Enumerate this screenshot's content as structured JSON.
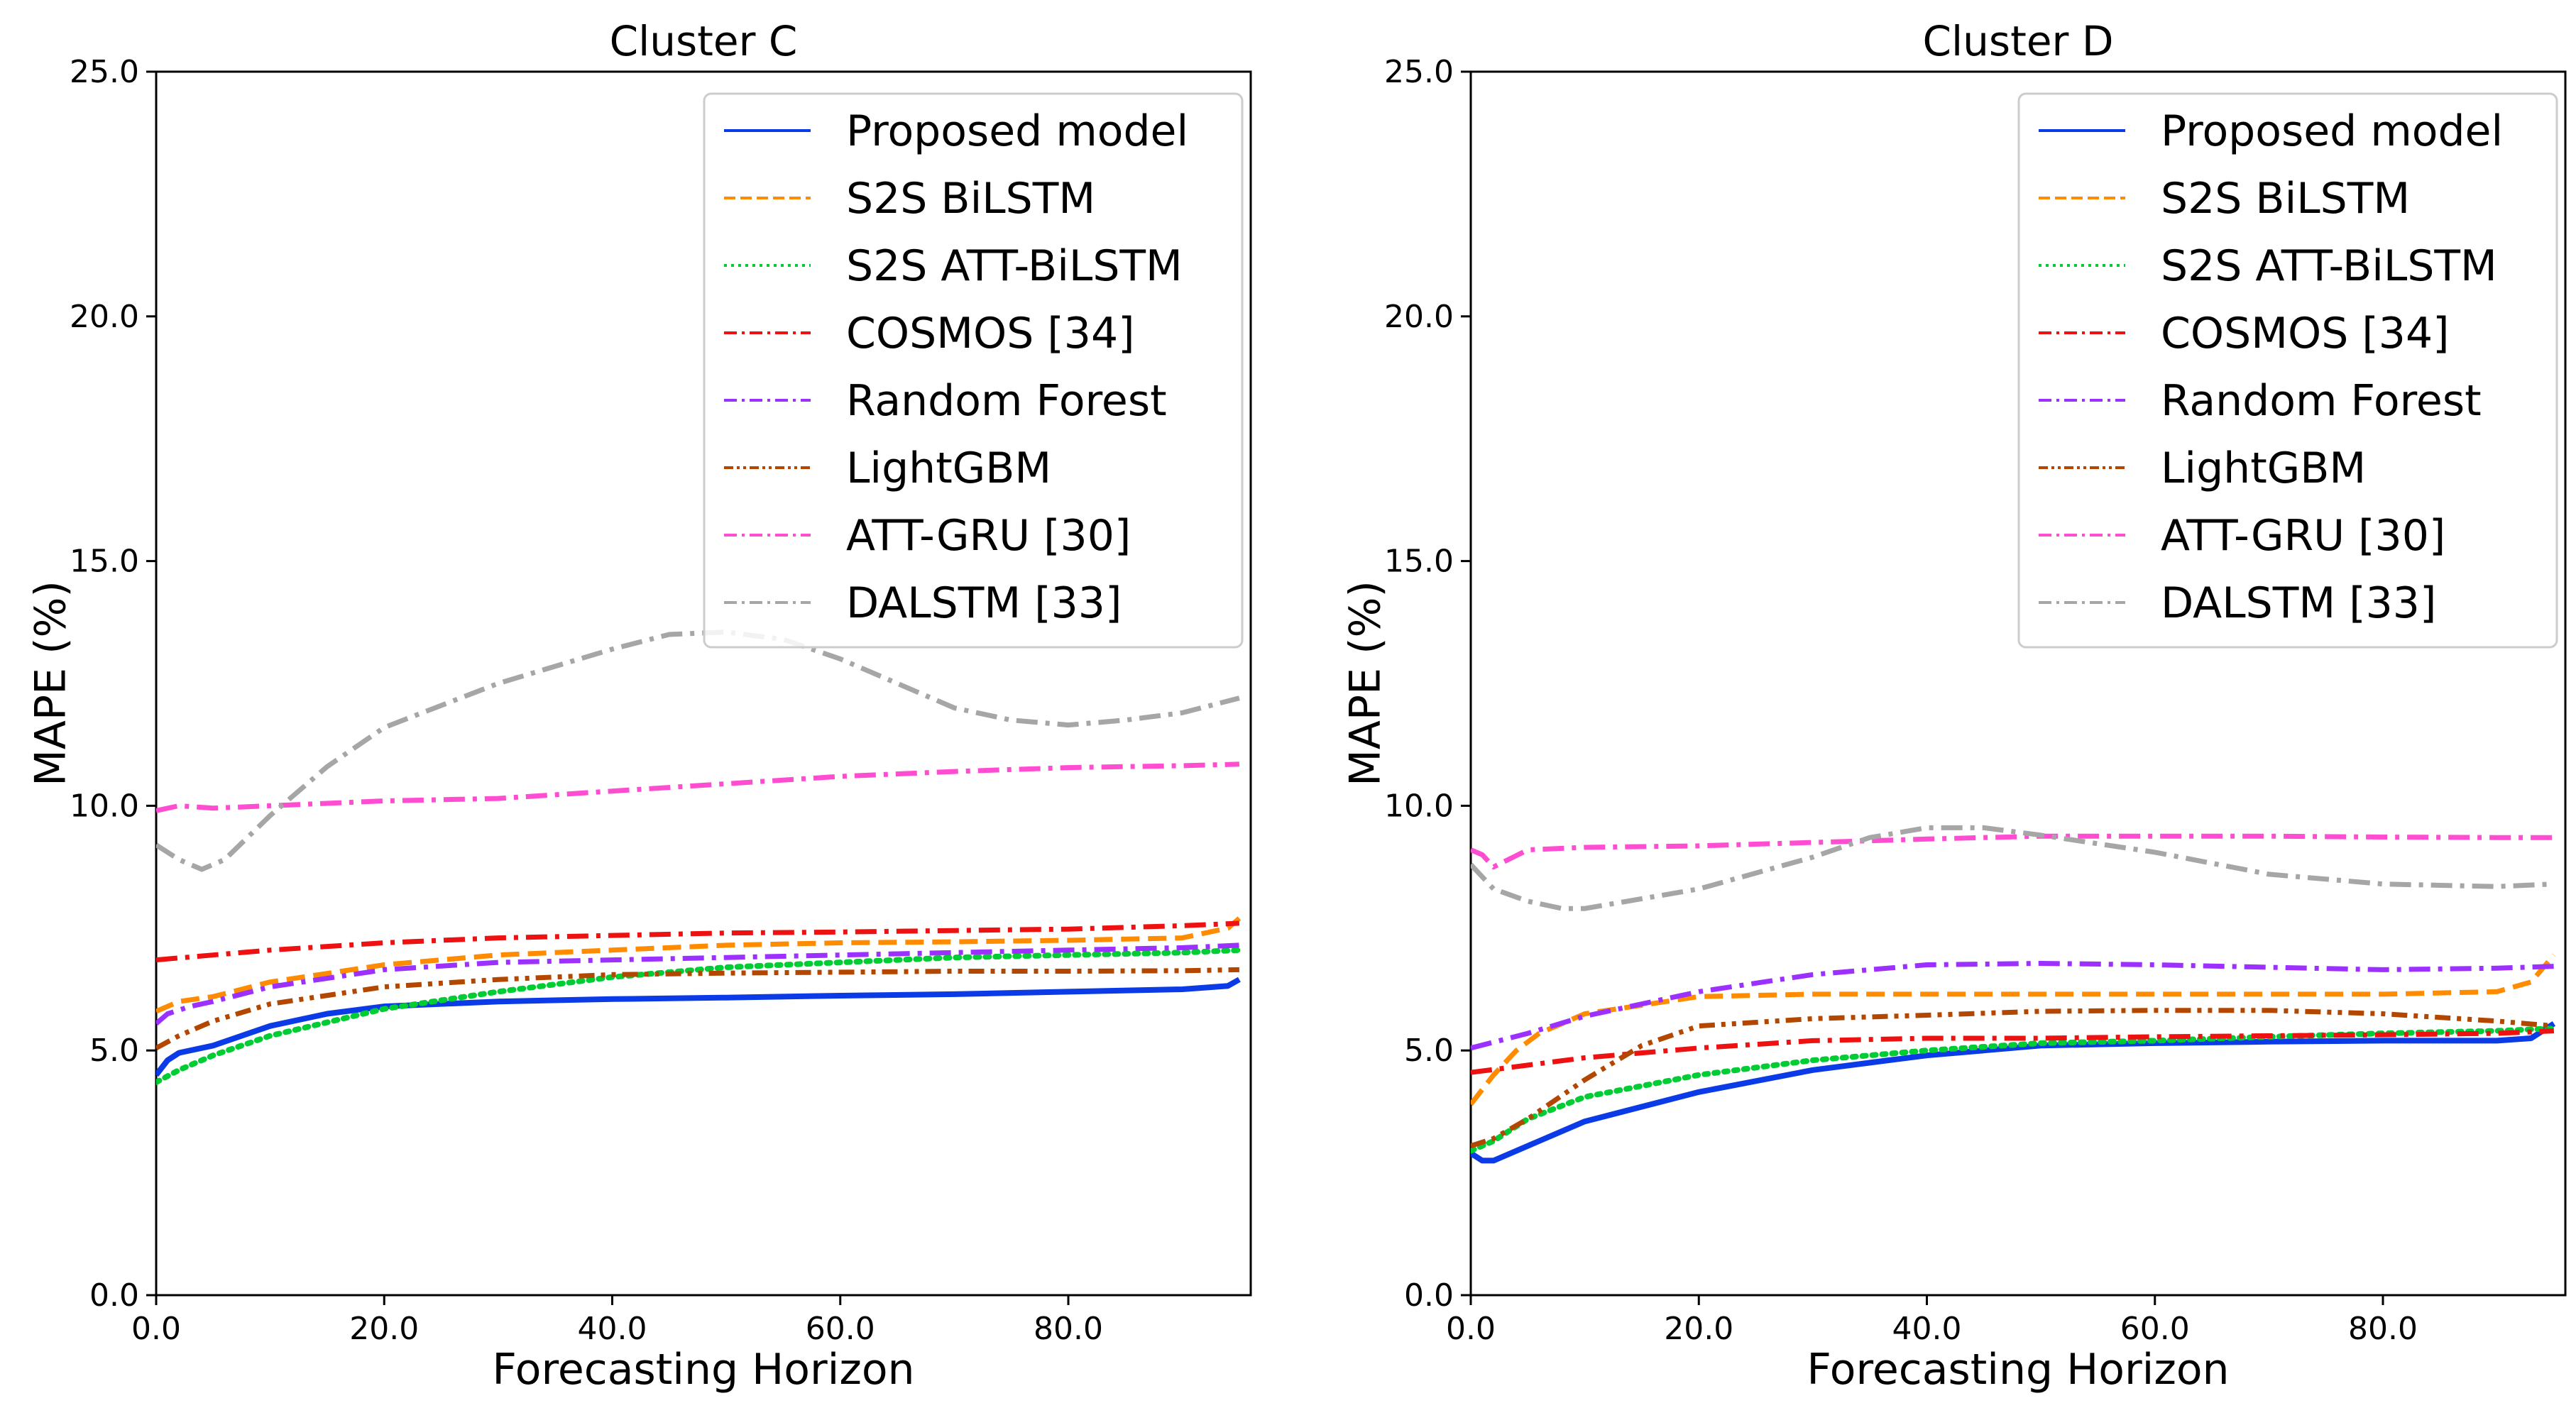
{
  "chart_data": [
    {
      "type": "line",
      "title": "Cluster C",
      "xlabel": "Forecasting Horizon",
      "ylabel": "MAPE (%)",
      "xlim": [
        0,
        96
      ],
      "ylim": [
        0,
        25
      ],
      "xticks": [
        "0.0",
        "20.0",
        "40.0",
        "60.0",
        "80.0"
      ],
      "yticks": [
        "0.0",
        "5.0",
        "10.0",
        "15.0",
        "20.0",
        "25.0"
      ],
      "grid": false,
      "legend_position": "upper-right",
      "series": [
        {
          "name": "Proposed model",
          "color": "#0a3be6",
          "dash": "solid",
          "x": [
            0,
            1,
            2,
            5,
            10,
            15,
            20,
            30,
            40,
            50,
            60,
            70,
            80,
            90,
            94,
            95
          ],
          "values": [
            4.5,
            4.8,
            4.95,
            5.1,
            5.5,
            5.75,
            5.9,
            6.0,
            6.05,
            6.08,
            6.12,
            6.15,
            6.2,
            6.25,
            6.32,
            6.45
          ]
        },
        {
          "name": "S2S BiLSTM",
          "color": "#ff8c00",
          "dash": "dashed",
          "x": [
            0,
            2,
            5,
            10,
            20,
            30,
            40,
            50,
            60,
            70,
            80,
            90,
            94,
            95
          ],
          "values": [
            5.8,
            6.0,
            6.1,
            6.4,
            6.75,
            6.95,
            7.05,
            7.15,
            7.2,
            7.22,
            7.25,
            7.3,
            7.5,
            7.7
          ]
        },
        {
          "name": "S2S ATT-BiLSTM",
          "color": "#00cc33",
          "dash": "dotted",
          "x": [
            0,
            2,
            5,
            10,
            20,
            30,
            40,
            50,
            60,
            70,
            80,
            90,
            95
          ],
          "values": [
            4.35,
            4.6,
            4.9,
            5.3,
            5.85,
            6.2,
            6.5,
            6.7,
            6.8,
            6.9,
            6.95,
            7.0,
            7.05
          ]
        },
        {
          "name": "COSMOS [34]",
          "color": "#ee1111",
          "dash": "dashdot",
          "x": [
            0,
            5,
            10,
            20,
            30,
            40,
            50,
            60,
            70,
            80,
            90,
            95
          ],
          "values": [
            6.85,
            6.95,
            7.05,
            7.2,
            7.3,
            7.35,
            7.4,
            7.42,
            7.45,
            7.48,
            7.55,
            7.6
          ]
        },
        {
          "name": "Random Forest",
          "color": "#9b30ff",
          "dash": "dashdot",
          "x": [
            0,
            1,
            3,
            5,
            10,
            20,
            30,
            40,
            50,
            60,
            70,
            80,
            90,
            95
          ],
          "values": [
            5.55,
            5.75,
            5.9,
            6.0,
            6.3,
            6.65,
            6.8,
            6.85,
            6.9,
            6.95,
            7.0,
            7.05,
            7.1,
            7.15
          ]
        },
        {
          "name": "LightGBM",
          "color": "#b34700",
          "dash": "dashdotdot",
          "x": [
            0,
            2,
            5,
            10,
            20,
            30,
            40,
            50,
            60,
            70,
            80,
            90,
            95
          ],
          "values": [
            5.05,
            5.3,
            5.6,
            5.95,
            6.3,
            6.45,
            6.55,
            6.58,
            6.6,
            6.62,
            6.62,
            6.63,
            6.65
          ]
        },
        {
          "name": "ATT-GRU [30]",
          "color": "#ff4dd2",
          "dash": "dashdot",
          "x": [
            0,
            2,
            5,
            10,
            20,
            30,
            40,
            50,
            60,
            70,
            80,
            90,
            95
          ],
          "values": [
            9.9,
            10.0,
            9.95,
            10.0,
            10.1,
            10.15,
            10.3,
            10.45,
            10.6,
            10.7,
            10.78,
            10.82,
            10.85
          ]
        },
        {
          "name": "DALSTM [33]",
          "color": "#a6a6a6",
          "dash": "dashdot",
          "x": [
            0,
            2,
            4,
            6,
            10,
            15,
            20,
            30,
            40,
            45,
            50,
            55,
            60,
            70,
            75,
            80,
            85,
            90,
            95
          ],
          "values": [
            9.2,
            8.9,
            8.7,
            8.9,
            9.8,
            10.8,
            11.6,
            12.5,
            13.2,
            13.5,
            13.55,
            13.4,
            13.0,
            12.0,
            11.75,
            11.65,
            11.75,
            11.9,
            12.2
          ]
        }
      ]
    },
    {
      "type": "line",
      "title": "Cluster D",
      "xlabel": "Forecasting Horizon",
      "ylabel": "MAPE (%)",
      "xlim": [
        0,
        96
      ],
      "ylim": [
        0,
        25
      ],
      "xticks": [
        "0.0",
        "20.0",
        "40.0",
        "60.0",
        "80.0"
      ],
      "yticks": [
        "0.0",
        "5.0",
        "10.0",
        "15.0",
        "20.0",
        "25.0"
      ],
      "grid": false,
      "legend_position": "upper-right",
      "series": [
        {
          "name": "Proposed model",
          "color": "#0a3be6",
          "dash": "solid",
          "x": [
            0,
            1,
            2,
            5,
            10,
            20,
            30,
            40,
            50,
            60,
            70,
            80,
            90,
            93,
            95
          ],
          "values": [
            2.9,
            2.75,
            2.75,
            3.05,
            3.55,
            4.15,
            4.6,
            4.9,
            5.1,
            5.15,
            5.18,
            5.2,
            5.2,
            5.25,
            5.55
          ]
        },
        {
          "name": "S2S BiLSTM",
          "color": "#ff8c00",
          "dash": "dashed",
          "x": [
            0,
            2,
            4,
            6,
            10,
            20,
            30,
            40,
            50,
            60,
            70,
            80,
            90,
            93,
            95
          ],
          "values": [
            3.9,
            4.5,
            5.0,
            5.35,
            5.75,
            6.1,
            6.15,
            6.15,
            6.15,
            6.15,
            6.15,
            6.15,
            6.2,
            6.4,
            6.95
          ]
        },
        {
          "name": "S2S ATT-BiLSTM",
          "color": "#00cc33",
          "dash": "dotted",
          "x": [
            0,
            2,
            5,
            10,
            20,
            30,
            40,
            50,
            60,
            70,
            80,
            90,
            95
          ],
          "values": [
            2.95,
            3.15,
            3.6,
            4.05,
            4.5,
            4.8,
            5.0,
            5.15,
            5.2,
            5.28,
            5.35,
            5.4,
            5.45
          ]
        },
        {
          "name": "COSMOS [34]",
          "color": "#ee1111",
          "dash": "dashdot",
          "x": [
            0,
            5,
            10,
            20,
            30,
            40,
            50,
            60,
            70,
            80,
            90,
            95
          ],
          "values": [
            4.55,
            4.7,
            4.85,
            5.05,
            5.2,
            5.25,
            5.25,
            5.28,
            5.3,
            5.32,
            5.35,
            5.4
          ]
        },
        {
          "name": "Random Forest",
          "color": "#9b30ff",
          "dash": "dashdot",
          "x": [
            0,
            5,
            10,
            20,
            30,
            40,
            50,
            60,
            70,
            80,
            90,
            95
          ],
          "values": [
            5.05,
            5.35,
            5.7,
            6.2,
            6.55,
            6.75,
            6.78,
            6.75,
            6.7,
            6.65,
            6.68,
            6.72
          ]
        },
        {
          "name": "LightGBM",
          "color": "#b34700",
          "dash": "dashdotdot",
          "x": [
            0,
            2,
            5,
            10,
            15,
            20,
            30,
            40,
            50,
            60,
            70,
            80,
            90,
            95
          ],
          "values": [
            3.05,
            3.2,
            3.6,
            4.4,
            5.1,
            5.5,
            5.65,
            5.72,
            5.8,
            5.82,
            5.82,
            5.75,
            5.6,
            5.5
          ]
        },
        {
          "name": "ATT-GRU [30]",
          "color": "#ff4dd2",
          "dash": "dashdot",
          "x": [
            0,
            1,
            2,
            5,
            10,
            20,
            30,
            40,
            50,
            60,
            70,
            80,
            90,
            95
          ],
          "values": [
            9.1,
            9.0,
            8.75,
            9.1,
            9.15,
            9.18,
            9.25,
            9.32,
            9.38,
            9.38,
            9.38,
            9.36,
            9.35,
            9.35
          ]
        },
        {
          "name": "DALSTM [33]",
          "color": "#a6a6a6",
          "dash": "dashdot",
          "x": [
            0,
            2,
            5,
            8,
            10,
            20,
            30,
            35,
            40,
            45,
            50,
            60,
            70,
            80,
            90,
            95
          ],
          "values": [
            8.8,
            8.3,
            8.05,
            7.9,
            7.9,
            8.3,
            8.95,
            9.35,
            9.55,
            9.55,
            9.4,
            9.05,
            8.6,
            8.4,
            8.35,
            8.4
          ]
        }
      ]
    }
  ]
}
